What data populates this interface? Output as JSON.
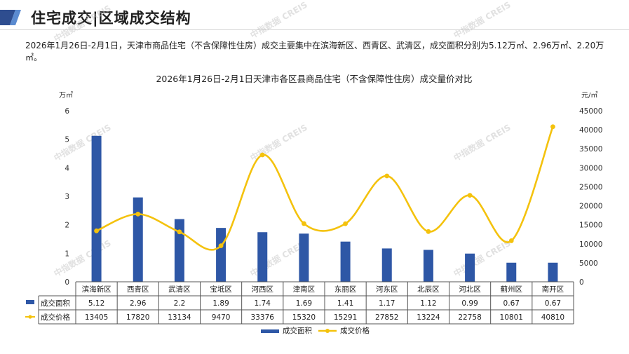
{
  "header": {
    "title": "住宅成交|区域成交结构"
  },
  "summary": "2026年1月26日-2月1日，天津市商品住宅（不含保障性住房）成交主要集中在滨海新区、西青区、武清区，成交面积分别为5.12万㎡、2.96万㎡、2.20万㎡。",
  "watermark": "中指数据 CREIS",
  "colors": {
    "bar": "#2E57A6",
    "line": "#F4C20D",
    "accent_left": "#2E4D8F",
    "accent_right": "#5B8BD0"
  },
  "chart_data": {
    "type": "bar+line",
    "title": "2026年1月26日-2月1日天津市各区县商品住宅（不含保障性住房）成交量价对比",
    "y_left_unit": "万㎡",
    "y_right_unit": "元/㎡",
    "y_left_range": [
      0,
      6
    ],
    "y_left_ticks": [
      "0",
      "1",
      "2",
      "3",
      "4",
      "5",
      "6"
    ],
    "y_right_range": [
      0,
      45000
    ],
    "y_right_ticks": [
      "0",
      "5000",
      "10000",
      "15000",
      "20000",
      "25000",
      "30000",
      "35000",
      "40000",
      "45000"
    ],
    "categories": [
      "滨海新区",
      "西青区",
      "武清区",
      "宝坻区",
      "河西区",
      "津南区",
      "东丽区",
      "河东区",
      "北辰区",
      "河北区",
      "蓟州区",
      "南开区"
    ],
    "series": [
      {
        "name": "成交面积",
        "type": "bar",
        "axis": "left",
        "values": [
          5.12,
          2.96,
          2.2,
          1.89,
          1.74,
          1.69,
          1.41,
          1.17,
          1.12,
          0.99,
          0.67,
          0.67
        ],
        "labels": [
          "5.12",
          "2.96",
          "2.2",
          "1.89",
          "1.74",
          "1.69",
          "1.41",
          "1.17",
          "1.12",
          "0.99",
          "0.67",
          "0.67"
        ]
      },
      {
        "name": "成交价格",
        "type": "line",
        "axis": "right",
        "values": [
          13405,
          17820,
          13134,
          9470,
          33376,
          15320,
          15291,
          27852,
          13224,
          22758,
          10801,
          40810
        ],
        "labels": [
          "13405",
          "17820",
          "13134",
          "9470",
          "33376",
          "15320",
          "15291",
          "27852",
          "13224",
          "22758",
          "10801",
          "40810"
        ]
      }
    ],
    "legend_position": "bottom"
  }
}
